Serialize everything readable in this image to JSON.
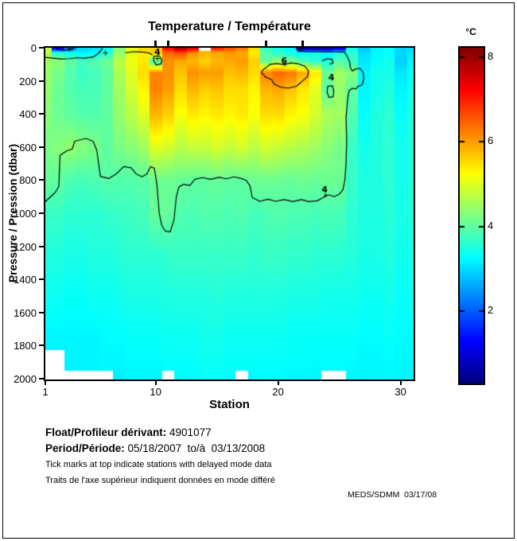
{
  "title": "Temperature / Température",
  "x_axis": {
    "label": "Station",
    "ticks": [
      1,
      10,
      20,
      30
    ],
    "min": 1,
    "max": 31
  },
  "y_axis": {
    "label": "Pressure / Pression (dbar)",
    "ticks": [
      0,
      200,
      400,
      600,
      800,
      1000,
      1200,
      1400,
      1600,
      1800,
      2000
    ],
    "min": 0,
    "max": 2000
  },
  "colorbar": {
    "label": "°C",
    "ticks": [
      2,
      4,
      6,
      8
    ],
    "min": 0.3,
    "max": 8.2,
    "colormap": "jet"
  },
  "annotations": {
    "float_label": "Float/Profileur dérivant:",
    "float_value": " 4901077",
    "period_label": "Period/Période:",
    "period_value": " 05/18/2007  to/à  03/13/2008",
    "note_en": "Tick marks at top indicate stations with delayed mode data",
    "note_fr": "Traits de l'axe supérieur indiquent données en mode différé",
    "credit": "MEDS/SDMM  03/17/08"
  },
  "chart_data": {
    "type": "heatmap",
    "title": "Temperature / Température",
    "xlabel": "Station",
    "ylabel": "Pressure / Pression (dbar)",
    "value_units": "°C",
    "stations": [
      1,
      2,
      3,
      4,
      5,
      6,
      7,
      8,
      9,
      10,
      11,
      12,
      13,
      14,
      15,
      16,
      17,
      18,
      19,
      20,
      21,
      22,
      23,
      24,
      25,
      26,
      27,
      28,
      29,
      30,
      31
    ],
    "pressure_levels": [
      0,
      30,
      80,
      150,
      250,
      400,
      600,
      800,
      1000,
      1250,
      1500,
      1750,
      1900,
      2000
    ],
    "values": [
      [
        4.8,
        1.0,
        2.2,
        2.9,
        3.0,
        3.3,
        4.3,
        5.1,
        5.5,
        5.6,
        7.2,
        7.9,
        7.5,
        null,
        7.0,
        6.6,
        6.3,
        5.5,
        3.6,
        3.4,
        3.2,
        0.6,
        0.5,
        0.5,
        0.8,
        3.4,
        2.8,
        3.2,
        3.3,
        2.9,
        3.0
      ],
      [
        4.6,
        3.6,
        3.4,
        3.2,
        3.3,
        3.6,
        4.4,
        5.0,
        5.4,
        5.6,
        6.4,
        6.6,
        6.1,
        5.8,
        5.9,
        6.0,
        5.9,
        5.4,
        3.9,
        3.6,
        3.4,
        3.3,
        3.4,
        3.2,
        3.5,
        3.6,
        3.0,
        3.2,
        3.3,
        3.0,
        3.1
      ],
      [
        4.5,
        4.3,
        4.0,
        3.8,
        3.9,
        4.1,
        4.7,
        5.1,
        5.4,
        3.8,
        6.1,
        5.9,
        5.8,
        5.6,
        5.8,
        5.9,
        6.0,
        5.6,
        4.0,
        4.4,
        4.2,
        3.8,
        3.6,
        3.5,
        3.9,
        3.7,
        3.1,
        3.3,
        3.4,
        2.9,
        3.2
      ],
      [
        4.4,
        4.2,
        3.9,
        3.7,
        3.8,
        4.0,
        4.6,
        5.0,
        5.5,
        6.2,
        6.1,
        5.7,
        6.1,
        6.0,
        6.0,
        5.7,
        5.8,
        5.5,
        6.2,
        6.4,
        6.3,
        5.9,
        5.4,
        4.1,
        4.5,
        4.3,
        3.2,
        3.4,
        3.4,
        3.1,
        3.3
      ],
      [
        4.4,
        4.1,
        3.9,
        3.8,
        3.8,
        4.0,
        4.5,
        4.9,
        5.3,
        6.2,
        6.0,
        5.5,
        5.8,
        5.6,
        5.7,
        5.5,
        5.5,
        5.3,
        5.8,
        5.9,
        5.7,
        5.4,
        5.0,
        4.0,
        4.4,
        4.0,
        3.2,
        3.4,
        3.5,
        3.2,
        3.4
      ],
      [
        4.3,
        4.1,
        4.0,
        3.9,
        3.9,
        4.0,
        4.4,
        4.7,
        5.0,
        5.8,
        5.6,
        5.2,
        5.4,
        5.3,
        5.4,
        5.3,
        5.4,
        5.2,
        5.5,
        5.5,
        5.3,
        5.2,
        4.9,
        4.6,
        4.5,
        3.9,
        3.3,
        3.5,
        3.6,
        3.3,
        3.5
      ],
      [
        4.2,
        4.3,
        4.4,
        4.3,
        4.2,
        4.0,
        4.2,
        4.3,
        4.5,
        5.0,
        4.9,
        4.7,
        4.8,
        4.8,
        4.9,
        4.8,
        4.9,
        4.7,
        4.9,
        4.8,
        4.7,
        4.6,
        4.5,
        4.3,
        4.2,
        3.7,
        3.4,
        3.5,
        3.6,
        3.4,
        3.5
      ],
      [
        4.05,
        4.0,
        3.85,
        3.8,
        3.85,
        3.95,
        3.9,
        3.9,
        3.95,
        4.1,
        4.1,
        4.05,
        4.0,
        4.0,
        4.05,
        4.0,
        4.0,
        4.1,
        4.1,
        4.1,
        4.05,
        4.1,
        4.05,
        4.1,
        4.1,
        3.7,
        3.5,
        3.5,
        3.6,
        3.4,
        3.5
      ],
      [
        3.7,
        3.7,
        3.6,
        3.6,
        3.6,
        3.65,
        3.7,
        3.75,
        3.8,
        4.05,
        4.05,
        3.9,
        3.85,
        3.9,
        3.9,
        3.85,
        3.9,
        3.8,
        3.85,
        3.9,
        3.85,
        3.85,
        3.8,
        3.85,
        3.8,
        3.6,
        3.5,
        3.5,
        3.55,
        3.45,
        3.5
      ],
      [
        3.5,
        3.5,
        3.45,
        3.45,
        3.5,
        3.5,
        3.55,
        3.6,
        3.6,
        3.6,
        3.65,
        3.7,
        3.7,
        3.7,
        3.7,
        3.7,
        3.7,
        3.65,
        3.7,
        3.7,
        3.65,
        3.65,
        3.6,
        3.6,
        3.6,
        3.55,
        3.45,
        3.45,
        3.5,
        3.4,
        3.45
      ],
      [
        3.35,
        3.35,
        3.3,
        3.3,
        3.35,
        3.35,
        3.4,
        3.45,
        3.45,
        3.45,
        3.5,
        3.5,
        3.5,
        3.5,
        3.55,
        3.5,
        3.5,
        3.5,
        3.5,
        3.5,
        3.45,
        3.45,
        3.45,
        3.4,
        3.4,
        3.4,
        3.35,
        3.35,
        3.4,
        3.3,
        3.35
      ],
      [
        3.2,
        3.2,
        3.2,
        3.2,
        3.2,
        3.25,
        3.25,
        3.3,
        3.3,
        3.3,
        3.35,
        3.35,
        3.35,
        3.4,
        3.4,
        3.35,
        3.35,
        3.35,
        3.35,
        3.35,
        3.3,
        3.3,
        3.3,
        3.3,
        3.3,
        3.3,
        3.25,
        3.25,
        3.3,
        3.25,
        3.25
      ],
      [
        null,
        null,
        3.18,
        3.18,
        3.2,
        3.22,
        3.22,
        3.25,
        3.25,
        3.25,
        3.3,
        3.3,
        3.3,
        3.35,
        3.35,
        3.3,
        3.3,
        3.3,
        3.3,
        3.3,
        3.28,
        3.28,
        3.25,
        3.25,
        3.25,
        3.25,
        3.22,
        3.22,
        3.25,
        3.2,
        3.2
      ],
      [
        null,
        null,
        null,
        null,
        null,
        null,
        3.15,
        3.2,
        3.2,
        3.2,
        null,
        3.22,
        3.25,
        3.3,
        3.3,
        3.25,
        null,
        3.22,
        3.25,
        3.25,
        3.2,
        3.2,
        3.2,
        null,
        null,
        3.2,
        3.18,
        3.2,
        3.22,
        3.2,
        3.2
      ]
    ],
    "delayed_mode_stations": [
      10,
      11,
      19,
      22
    ],
    "contour_lines": [
      {
        "level": "4",
        "points": [
          [
            1,
            930
          ],
          [
            1.8,
            875
          ],
          [
            2.1,
            840
          ],
          [
            2.2,
            650
          ],
          [
            2.7,
            625
          ],
          [
            3.2,
            612
          ],
          [
            3.4,
            565
          ],
          [
            4.3,
            548
          ],
          [
            4.9,
            565
          ],
          [
            5.2,
            620
          ],
          [
            5.35,
            700
          ],
          [
            5.5,
            778
          ],
          [
            6.2,
            790
          ],
          [
            6.8,
            762
          ],
          [
            7.4,
            718
          ],
          [
            8.0,
            725
          ],
          [
            8.4,
            762
          ],
          [
            8.9,
            780
          ],
          [
            9.3,
            762
          ],
          [
            9.6,
            718
          ],
          [
            9.9,
            728
          ],
          [
            10.1,
            820
          ],
          [
            10.3,
            1000
          ],
          [
            10.5,
            1072
          ],
          [
            10.8,
            1108
          ],
          [
            11.2,
            1112
          ],
          [
            11.5,
            1040
          ],
          [
            11.7,
            900
          ],
          [
            11.9,
            842
          ],
          [
            12.3,
            825
          ],
          [
            12.8,
            832
          ],
          [
            13.2,
            795
          ],
          [
            13.8,
            785
          ],
          [
            14.5,
            795
          ],
          [
            15.2,
            783
          ],
          [
            15.8,
            792
          ],
          [
            16.4,
            780
          ],
          [
            17.0,
            790
          ],
          [
            17.4,
            802
          ],
          [
            17.7,
            832
          ],
          [
            17.9,
            905
          ],
          [
            18.5,
            928
          ],
          [
            19.2,
            915
          ],
          [
            19.8,
            928
          ],
          [
            20.5,
            918
          ],
          [
            21.2,
            930
          ],
          [
            21.9,
            918
          ],
          [
            22.5,
            930
          ],
          [
            23.2,
            925
          ],
          [
            23.7,
            905
          ],
          [
            24.1,
            888
          ],
          [
            24.6,
            900
          ],
          [
            25.0,
            885
          ],
          [
            25.3,
            858
          ],
          [
            25.45,
            800
          ],
          [
            25.55,
            700
          ],
          [
            25.6,
            560
          ],
          [
            25.55,
            420
          ],
          [
            25.65,
            340
          ],
          [
            25.7,
            300
          ],
          [
            25.8,
            260
          ],
          [
            26.05,
            245
          ],
          [
            26.35,
            250
          ],
          [
            26.5,
            235
          ],
          [
            26.85,
            225
          ],
          [
            27.0,
            190
          ],
          [
            26.95,
            150
          ],
          [
            26.7,
            125
          ],
          [
            26.35,
            128
          ],
          [
            26.05,
            140
          ],
          [
            25.9,
            120
          ],
          [
            25.85,
            85
          ],
          [
            25.6,
            45
          ],
          [
            25.4,
            26
          ],
          [
            24.5,
            24
          ],
          [
            23.5,
            23
          ],
          [
            22.5,
            24
          ],
          [
            21.7,
            20
          ],
          [
            21.5,
            6
          ],
          [
            21.45,
            0
          ]
        ]
      },
      {
        "level": "6",
        "points": [
          [
            19.0,
            122
          ],
          [
            19.35,
            100
          ],
          [
            19.9,
            96
          ],
          [
            20.5,
            102
          ],
          [
            21.0,
            92
          ],
          [
            21.6,
            96
          ],
          [
            22.2,
            112
          ],
          [
            22.5,
            142
          ],
          [
            22.4,
            175
          ],
          [
            22.0,
            200
          ],
          [
            21.5,
            233
          ],
          [
            20.8,
            244
          ],
          [
            20.2,
            238
          ],
          [
            19.7,
            220
          ],
          [
            19.45,
            192
          ],
          [
            18.95,
            176
          ],
          [
            18.65,
            150
          ],
          [
            18.8,
            130
          ],
          [
            19.0,
            122
          ]
        ]
      },
      {
        "level": "4",
        "points": [
          [
            24.05,
            233
          ],
          [
            24.45,
            230
          ],
          [
            24.55,
            262
          ],
          [
            24.5,
            296
          ],
          [
            24.15,
            300
          ],
          [
            24.0,
            268
          ],
          [
            24.05,
            233
          ]
        ]
      },
      {
        "level": "4",
        "points": [
          [
            9.85,
            52
          ],
          [
            10.3,
            48
          ],
          [
            10.5,
            72
          ],
          [
            10.45,
            98
          ],
          [
            10.05,
            104
          ],
          [
            9.85,
            78
          ],
          [
            9.85,
            52
          ]
        ]
      },
      {
        "level": "4",
        "points": [
          [
            1,
            58
          ],
          [
            1.6,
            63
          ],
          [
            2.3,
            68
          ],
          [
            3.0,
            66
          ],
          [
            3.6,
            60
          ],
          [
            4.2,
            63
          ],
          [
            4.9,
            56
          ],
          [
            5.3,
            36
          ],
          [
            5.6,
            12
          ],
          [
            5.65,
            0
          ]
        ]
      },
      {
        "level": "4",
        "points": [
          [
            1.9,
            0
          ],
          [
            2.0,
            12
          ],
          [
            2.6,
            16
          ],
          [
            3.2,
            12
          ],
          [
            3.3,
            0
          ]
        ]
      },
      {
        "level": "4",
        "points": [
          [
            7.5,
            30
          ],
          [
            8.2,
            24
          ],
          [
            8.9,
            26
          ],
          [
            9.4,
            30
          ],
          [
            9.75,
            44
          ]
        ]
      },
      {
        "level": "4",
        "points": [
          [
            23.6,
            80
          ],
          [
            24.0,
            66
          ],
          [
            24.4,
            70
          ],
          [
            24.5,
            92
          ],
          [
            24.2,
            100
          ]
        ]
      }
    ],
    "contour_labels": [
      {
        "text": "4",
        "station": 10.15,
        "pressure": 30
      },
      {
        "text": "+",
        "station": 10.15,
        "pressure": 68
      },
      {
        "text": "+",
        "station": 3.0,
        "pressure": 12
      },
      {
        "text": "+",
        "station": 5.9,
        "pressure": 38
      },
      {
        "text": "6",
        "station": 20.5,
        "pressure": 82
      },
      {
        "text": "+",
        "station": 20.55,
        "pressure": 104
      },
      {
        "text": "4",
        "station": 24.35,
        "pressure": 182
      },
      {
        "text": "+",
        "station": 21.9,
        "pressure": 10
      },
      {
        "text": "4",
        "station": 23.8,
        "pressure": 862
      },
      {
        "text": "*",
        "station": 23.85,
        "pressure": 905
      }
    ]
  }
}
